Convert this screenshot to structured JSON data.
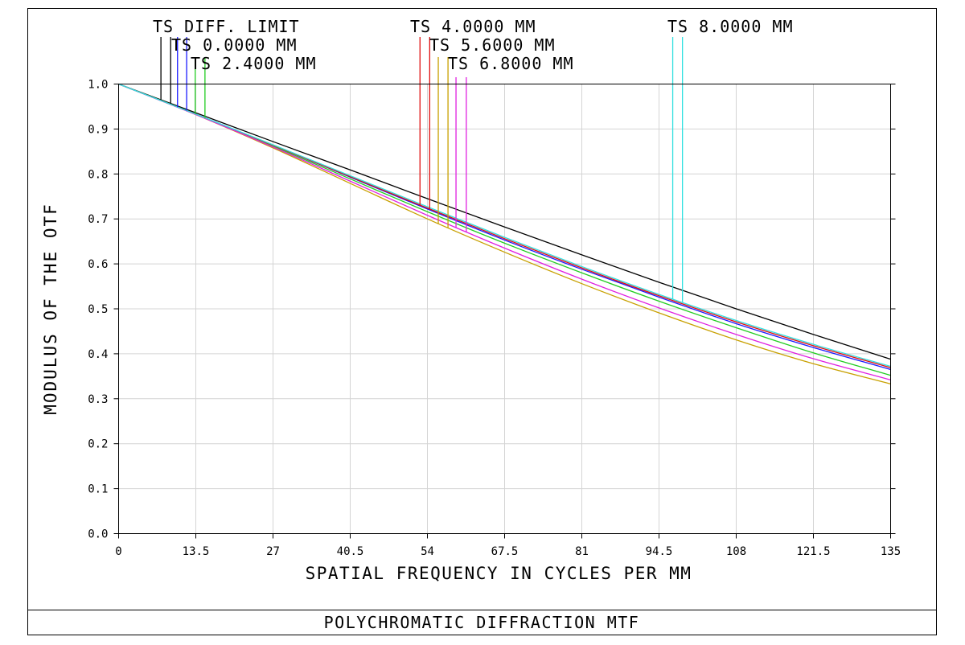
{
  "chart_data": {
    "type": "line",
    "title": "POLYCHROMATIC DIFFRACTION MTF",
    "xlabel": "SPATIAL FREQUENCY IN CYCLES PER MM",
    "ylabel": "MODULUS OF THE OTF",
    "xlim": [
      0,
      135
    ],
    "ylim": [
      0,
      1
    ],
    "xticks": [
      "0",
      "13.5",
      "27",
      "40.5",
      "54",
      "67.5",
      "81",
      "94.5",
      "108",
      "121.5",
      "135"
    ],
    "yticks": [
      "0.0",
      "0.1",
      "0.2",
      "0.3",
      "0.4",
      "0.5",
      "0.6",
      "0.7",
      "0.8",
      "0.9",
      "1.0"
    ],
    "grid": true,
    "x": [
      0,
      13.5,
      27,
      40.5,
      54,
      67.5,
      81,
      94.5,
      108,
      121.5,
      135
    ],
    "series": [
      {
        "name": "TS DIFF. LIMIT",
        "color": "#000000",
        "values": [
          1.0,
          0.936,
          0.872,
          0.809,
          0.745,
          0.682,
          0.62,
          0.559,
          0.5,
          0.443,
          0.388
        ]
      },
      {
        "name": "TS 0.0000 MM",
        "color": "#1a1aff",
        "values": [
          1.0,
          0.933,
          0.864,
          0.793,
          0.722,
          0.653,
          0.588,
          0.526,
          0.467,
          0.414,
          0.365
        ]
      },
      {
        "name": "TS 2.4000 MM",
        "color": "#22cc22",
        "values": [
          1.0,
          0.933,
          0.862,
          0.789,
          0.716,
          0.646,
          0.58,
          0.517,
          0.458,
          0.402,
          0.352
        ]
      },
      {
        "name": "TS 4.0000 MM",
        "color": "#e01010",
        "values": [
          1.0,
          0.933,
          0.864,
          0.794,
          0.724,
          0.656,
          0.591,
          0.529,
          0.471,
          0.418,
          0.369
        ]
      },
      {
        "name": "TS 5.6000 MM",
        "color": "#c8a000",
        "values": [
          1.0,
          0.932,
          0.858,
          0.779,
          0.7,
          0.626,
          0.556,
          0.491,
          0.431,
          0.378,
          0.333
        ]
      },
      {
        "name": "TS 6.8000 MM",
        "color": "#e020e0",
        "values": [
          1.0,
          0.932,
          0.86,
          0.784,
          0.708,
          0.635,
          0.566,
          0.502,
          0.443,
          0.389,
          0.342
        ]
      },
      {
        "name": "TS 8.0000 MM",
        "color": "#30e0e0",
        "values": [
          1.0,
          0.933,
          0.865,
          0.796,
          0.727,
          0.659,
          0.594,
          0.532,
          0.474,
          0.421,
          0.372
        ]
      }
    ],
    "legend_labels": [
      {
        "text": "TS DIFF. LIMIT"
      },
      {
        "text": "TS 0.0000 MM"
      },
      {
        "text": "TS 2.4000 MM"
      },
      {
        "text": "TS 4.0000 MM"
      },
      {
        "text": "TS 5.6000 MM"
      },
      {
        "text": "TS 6.8000 MM"
      },
      {
        "text": "TS 8.0000 MM"
      }
    ]
  }
}
